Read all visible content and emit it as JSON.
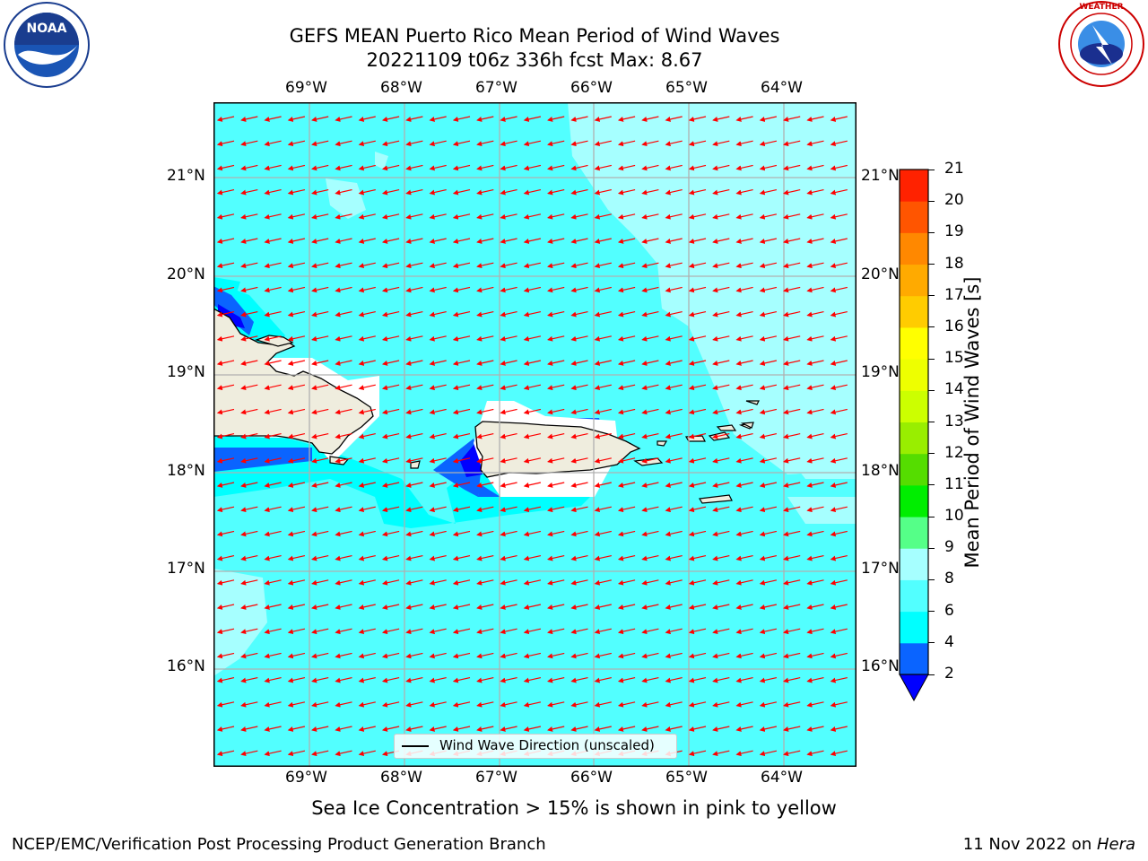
{
  "header": {
    "title_line1": "GEFS MEAN Puerto Rico Mean Period of Wind Waves",
    "title_line2": "20221109 t06z 336h fcst   Max: 8.67"
  },
  "logos": {
    "noaa": {
      "text": "NOAA",
      "ring_text": "NATIONAL OCEANIC AND ATMOSPHERIC ADMINISTRATION · U.S. DEPARTMENT OF COMMERCE"
    },
    "nws": {
      "ring_text": "NATIONAL WEATHER SERVICE"
    }
  },
  "map": {
    "lon_labels": [
      "69°W",
      "68°W",
      "67°W",
      "66°W",
      "65°W",
      "64°W"
    ],
    "lat_labels": [
      "21°N",
      "20°N",
      "19°N",
      "18°N",
      "17°N",
      "16°N"
    ],
    "legend_label": "Wind Wave Direction (unscaled)",
    "colors": {
      "ocean": "#52ffff",
      "land": "#efedde",
      "arrow": "#ff0000",
      "grid": "#b0b0b0"
    }
  },
  "colorbar": {
    "label": "Mean Period of Wind Waves [s]",
    "ticks": [
      "2",
      "4",
      "6",
      "8",
      "9",
      "10",
      "11",
      "12",
      "13",
      "14",
      "15",
      "16",
      "17",
      "18",
      "19",
      "20",
      "21"
    ],
    "colors": [
      "#0a64ff",
      "#00ffff",
      "#52ffff",
      "#a6ffff",
      "#55ff88",
      "#00ee00",
      "#55dd00",
      "#99ee00",
      "#ccff00",
      "#eeff00",
      "#ffff00",
      "#ffcc00",
      "#ffaa00",
      "#ff8800",
      "#ff5500",
      "#ff2200"
    ],
    "extend_color": "#0000ff"
  },
  "notes": {
    "sea_ice": "Sea Ice Concentration > 15% is shown in pink to yellow"
  },
  "footer": {
    "left": "NCEP/EMC/Verification Post Processing Product Generation Branch",
    "date": "11 Nov 2022 on ",
    "machine": "Hera"
  }
}
